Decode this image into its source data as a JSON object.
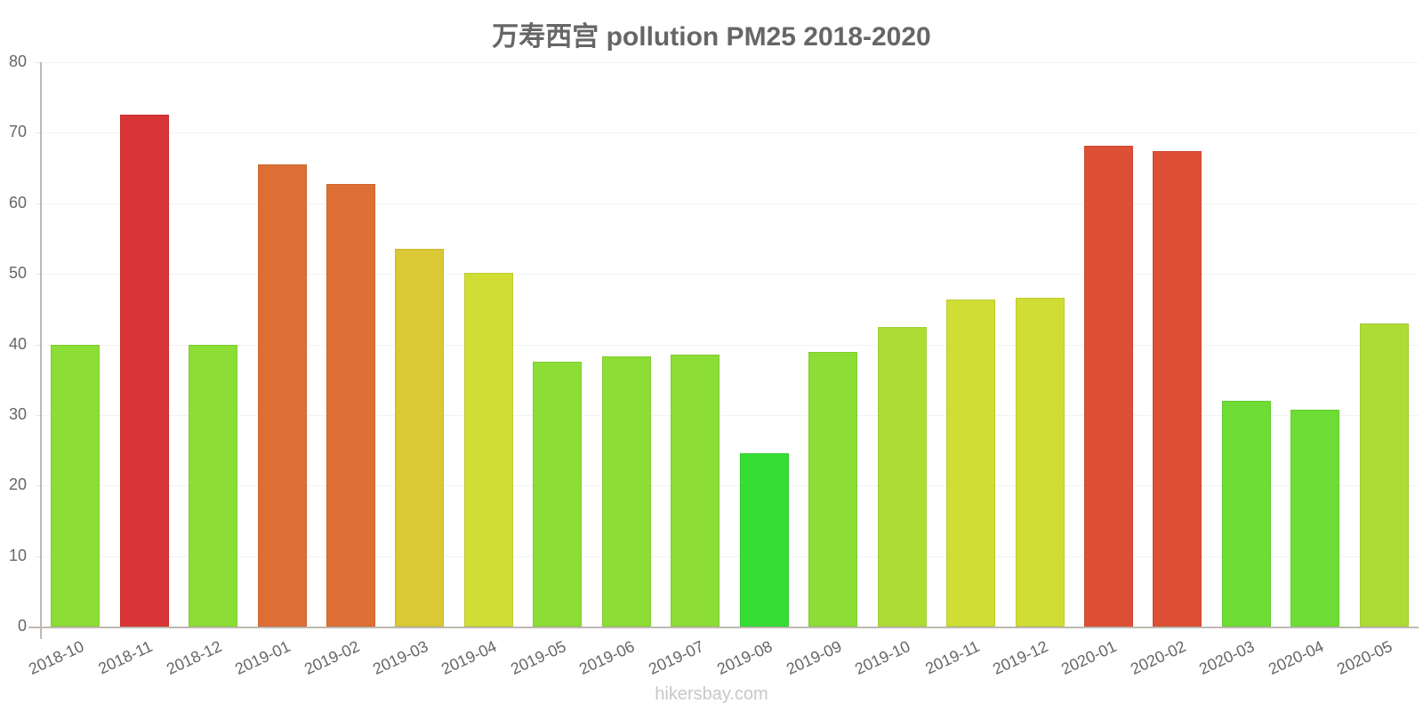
{
  "chart_data": {
    "type": "bar",
    "title": "万寿西宫 pollution PM25 2018-2020",
    "xlabel": "",
    "ylabel": "",
    "ylim": [
      0,
      80
    ],
    "yticks": [
      0,
      10,
      20,
      30,
      40,
      50,
      60,
      70,
      80
    ],
    "grid": true,
    "legend": null,
    "categories": [
      "2018-10",
      "2018-11",
      "2018-12",
      "2019-01",
      "2019-02",
      "2019-03",
      "2019-04",
      "2019-05",
      "2019-06",
      "2019-07",
      "2019-08",
      "2019-09",
      "2019-10",
      "2019-11",
      "2019-12",
      "2020-01",
      "2020-02",
      "2020-03",
      "2020-04",
      "2020-05"
    ],
    "values": [
      39.9,
      72.6,
      40.0,
      65.5,
      62.7,
      53.6,
      50.1,
      37.6,
      38.3,
      38.5,
      24.6,
      38.9,
      42.5,
      46.4,
      46.6,
      68.2,
      67.4,
      32.0,
      30.7,
      42.9
    ],
    "colors": [
      "#8cdd35",
      "#da3536",
      "#8cdd35",
      "#dd6f35",
      "#dd6f35",
      "#dbc835",
      "#cfdd35",
      "#8cdd35",
      "#8cdd35",
      "#8cdd35",
      "#36dd35",
      "#8cdd35",
      "#addd35",
      "#cfdd35",
      "#cfdd35",
      "#dd5035",
      "#dd5035",
      "#6ddd35",
      "#6ddd35",
      "#addd35"
    ]
  },
  "watermark": "hikersbay.com"
}
